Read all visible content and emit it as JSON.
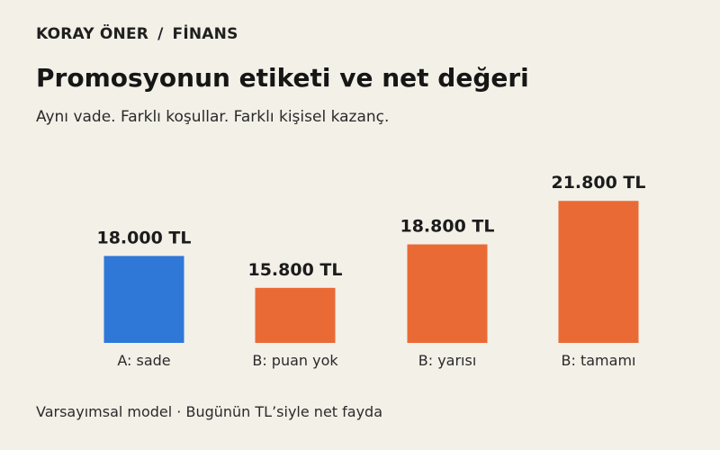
{
  "header": {
    "author": "KORAY ÖNER",
    "separator": "/",
    "section": "FİNANS"
  },
  "title": "Promosyonun etiketi ve net değeri",
  "subtitle": "Aynı vade. Farklı koşullar. Farklı kişisel kazanç.",
  "footnote": "Varsayımsal model · Bugünün TL’siyle net fayda",
  "chart_data": {
    "type": "bar",
    "categories": [
      "A: sade",
      "B: puan yok",
      "B: yarısı",
      "B: tamamı"
    ],
    "values": [
      18000,
      15800,
      18800,
      21800
    ],
    "value_labels": [
      "18.000 TL",
      "15.800 TL",
      "18.800 TL",
      "21.800 TL"
    ],
    "colors": [
      "#2f78d8",
      "#ea6a35",
      "#ea6a35",
      "#ea6a35"
    ],
    "ylim": [
      12000,
      22000
    ],
    "grid": false,
    "legend": "none"
  }
}
